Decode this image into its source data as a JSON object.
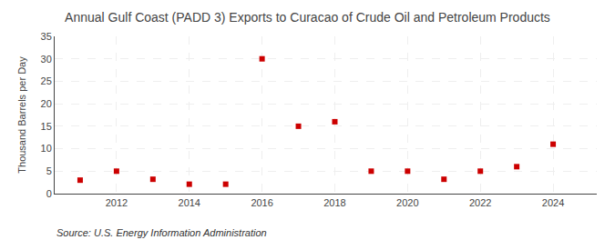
{
  "chart_data": {
    "type": "scatter",
    "title": "Annual Gulf Coast (PADD 3) Exports to Curacao of Crude Oil and Petroleum Products",
    "ylabel": "Thousand Barrels per Day",
    "annotations": [
      "Source: U.S. Energy Information Administration"
    ],
    "x": [
      2011,
      2012,
      2013,
      2014,
      2015,
      2016,
      2017,
      2018,
      2019,
      2020,
      2021,
      2022,
      2023,
      2024
    ],
    "values": [
      3.0,
      5.0,
      3.2,
      2.1,
      2.1,
      30.0,
      15.0,
      16.0,
      5.0,
      5.0,
      3.2,
      5.0,
      6.0,
      11.0
    ],
    "color": "#cc0000",
    "marker": "square",
    "xlim": [
      2010.3,
      2025.2
    ],
    "xticks": [
      2012,
      2014,
      2016,
      2018,
      2020,
      2022,
      2024
    ],
    "ylim": [
      0,
      35
    ],
    "yticks": [
      0,
      5,
      10,
      15,
      20,
      25,
      30,
      35
    ],
    "grid": true
  }
}
